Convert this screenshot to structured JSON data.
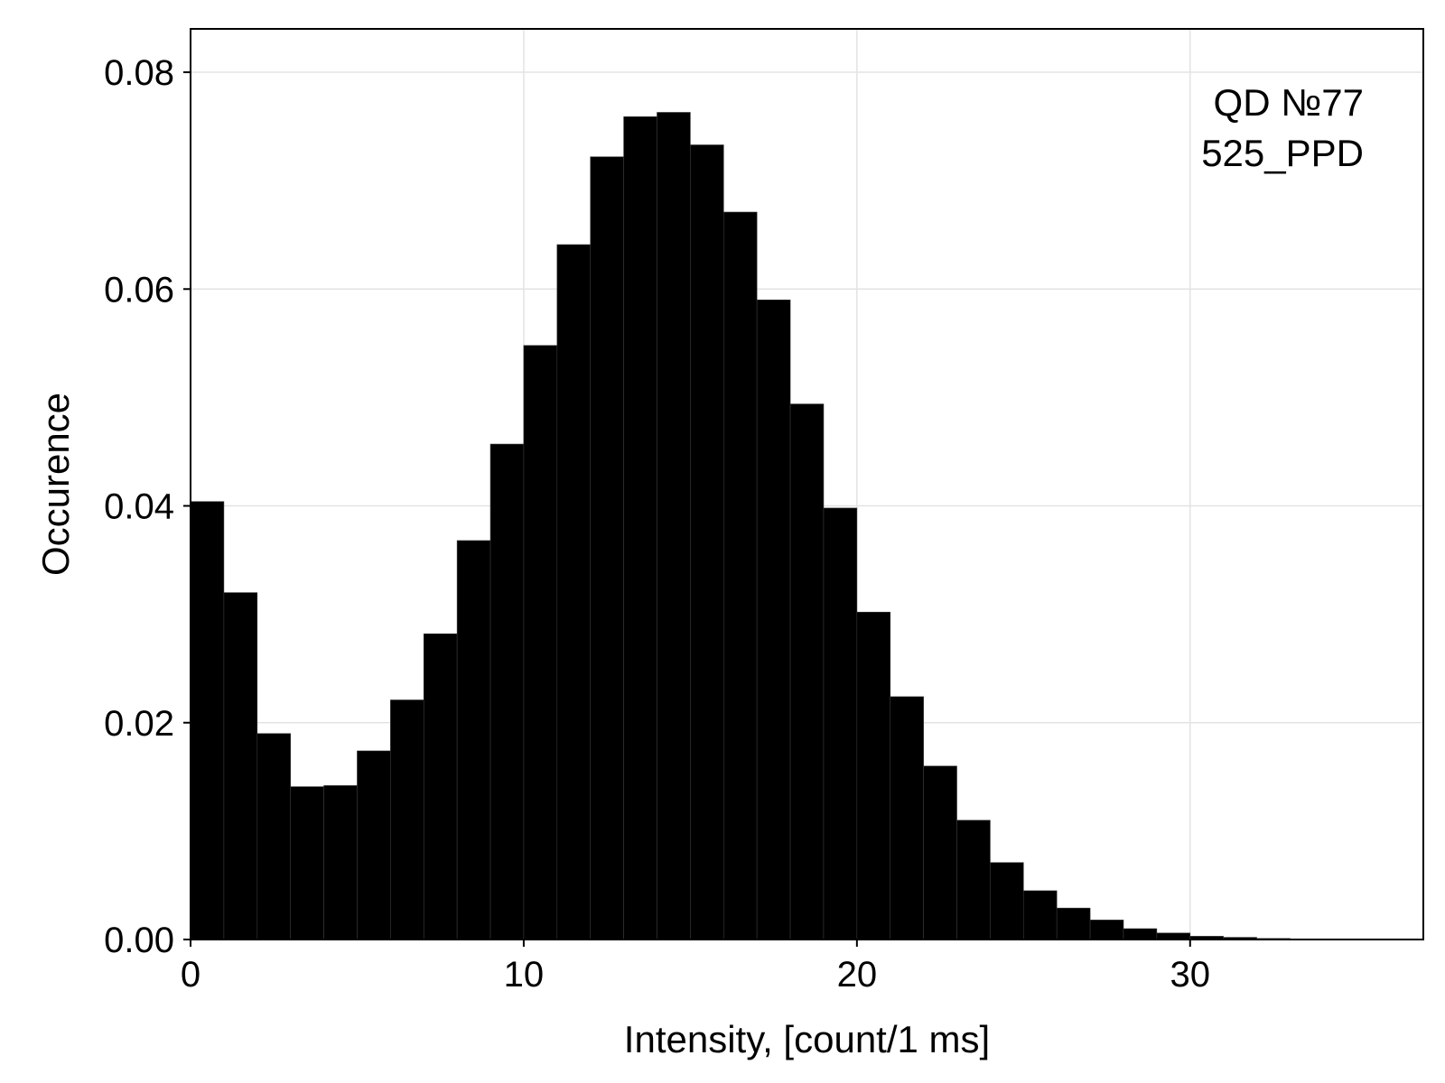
{
  "chart_data": {
    "type": "bar",
    "title": "",
    "xlabel": "Intensity, [count/1 ms]",
    "ylabel": "Occurence",
    "annotations": [
      "QD №77",
      "525_PPD"
    ],
    "legend_placement": "top-right",
    "grid": true,
    "bin_width": 1,
    "xlim": [
      0,
      37
    ],
    "ylim": [
      0,
      0.084
    ],
    "x_ticks": [
      0,
      10,
      20,
      30
    ],
    "x_tick_labels": [
      "0",
      "10",
      "20",
      "30"
    ],
    "y_ticks": [
      0,
      0.02,
      0.04,
      0.06,
      0.08
    ],
    "y_tick_labels": [
      "0.00",
      "0.02",
      "0.04",
      "0.06",
      "0.08"
    ],
    "bins": [
      {
        "x": 0,
        "value": 0.0404
      },
      {
        "x": 1,
        "value": 0.032
      },
      {
        "x": 2,
        "value": 0.019
      },
      {
        "x": 3,
        "value": 0.0141
      },
      {
        "x": 4,
        "value": 0.0142
      },
      {
        "x": 5,
        "value": 0.0174
      },
      {
        "x": 6,
        "value": 0.0221
      },
      {
        "x": 7,
        "value": 0.0282
      },
      {
        "x": 8,
        "value": 0.0368
      },
      {
        "x": 9,
        "value": 0.0457
      },
      {
        "x": 10,
        "value": 0.0548
      },
      {
        "x": 11,
        "value": 0.0641
      },
      {
        "x": 12,
        "value": 0.0722
      },
      {
        "x": 13,
        "value": 0.0759
      },
      {
        "x": 14,
        "value": 0.0763
      },
      {
        "x": 15,
        "value": 0.0733
      },
      {
        "x": 16,
        "value": 0.0671
      },
      {
        "x": 17,
        "value": 0.059
      },
      {
        "x": 18,
        "value": 0.0494
      },
      {
        "x": 19,
        "value": 0.0398
      },
      {
        "x": 20,
        "value": 0.0302
      },
      {
        "x": 21,
        "value": 0.0224
      },
      {
        "x": 22,
        "value": 0.016
      },
      {
        "x": 23,
        "value": 0.011
      },
      {
        "x": 24,
        "value": 0.0071
      },
      {
        "x": 25,
        "value": 0.0045
      },
      {
        "x": 26,
        "value": 0.0029
      },
      {
        "x": 27,
        "value": 0.0018
      },
      {
        "x": 28,
        "value": 0.001
      },
      {
        "x": 29,
        "value": 0.0006
      },
      {
        "x": 30,
        "value": 0.0003
      },
      {
        "x": 31,
        "value": 0.0002
      },
      {
        "x": 32,
        "value": 0.0001
      },
      {
        "x": 33,
        "value": 5e-05
      },
      {
        "x": 34,
        "value": 2e-05
      },
      {
        "x": 35,
        "value": 1e-05
      }
    ],
    "colors": {
      "bar": "#000000",
      "grid": "#e3e3e3",
      "frame": "#000000",
      "background": "#ffffff"
    }
  }
}
